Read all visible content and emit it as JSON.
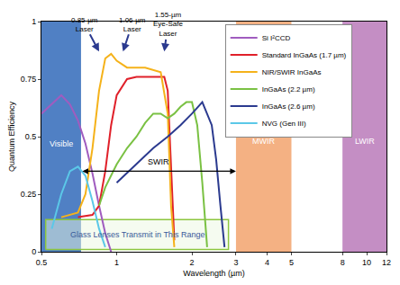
{
  "chart_data": {
    "type": "line",
    "x_label": "Wavelength (µm)",
    "y_label": "Quantum Efficiency",
    "xlim": [
      0.5,
      12
    ],
    "ylim": [
      0,
      1
    ],
    "xticks": [
      0.5,
      1,
      2,
      3,
      4,
      5,
      8,
      10,
      12
    ],
    "yticks": [
      0,
      0.25,
      0.5,
      0.75,
      1
    ],
    "log": "x",
    "grid": false,
    "legend": "upper right",
    "regions": [
      {
        "label": "Visible",
        "x0": 0.5,
        "x1": 0.72,
        "color": "#5080c4"
      },
      {
        "label": "MWIR",
        "x0": 3,
        "x1": 5,
        "color": "#f4b183"
      },
      {
        "label": "LWIR",
        "x0": 8,
        "x1": 12,
        "color": "#c48ec4"
      }
    ],
    "range_arrow": {
      "label": "SWIR",
      "x0": 0.72,
      "x1": 3
    },
    "lasers": [
      {
        "label": "0.85-µm Laser",
        "x": 0.85
      },
      {
        "label": "1.06-µm Laser",
        "x": 1.06
      },
      {
        "label": "1.55-µm Eye-Safe Laser",
        "x": 1.55
      }
    ],
    "box": {
      "label": "Glass Lenses Transmit in This Range",
      "x0": 0.52,
      "x1": 2.8,
      "y0": 0.01,
      "y1": 0.14,
      "color": "#8dc63f"
    },
    "series": [
      {
        "name": "Si I²CCD",
        "color": "#a05cbf",
        "x": [
          0.5,
          0.55,
          0.6,
          0.65,
          0.7,
          0.75,
          0.8,
          0.85,
          0.9,
          0.95
        ],
        "values": [
          0.6,
          0.64,
          0.68,
          0.64,
          0.57,
          0.47,
          0.34,
          0.2,
          0.08,
          0.0
        ]
      },
      {
        "name": "Standard InGaAs (1.7 µm)",
        "color": "#e0202a",
        "x": [
          0.7,
          0.8,
          0.85,
          0.9,
          0.95,
          1.0,
          1.1,
          1.2,
          1.4,
          1.55,
          1.6,
          1.65,
          1.7
        ],
        "values": [
          0.15,
          0.16,
          0.2,
          0.35,
          0.55,
          0.68,
          0.75,
          0.76,
          0.76,
          0.76,
          0.7,
          0.35,
          0.05
        ]
      },
      {
        "name": "NIR/SWIR InGaAs",
        "color": "#f5b21a",
        "x": [
          0.6,
          0.7,
          0.75,
          0.8,
          0.85,
          0.9,
          0.95,
          1.0,
          1.1,
          1.3,
          1.5,
          1.6,
          1.65,
          1.7
        ],
        "values": [
          0.15,
          0.17,
          0.25,
          0.45,
          0.7,
          0.84,
          0.86,
          0.83,
          0.8,
          0.8,
          0.78,
          0.6,
          0.2,
          0.02
        ]
      },
      {
        "name": "InGaAs (2.2 µm)",
        "color": "#7ac143",
        "x": [
          0.85,
          0.9,
          1.0,
          1.1,
          1.2,
          1.3,
          1.4,
          1.5,
          1.6,
          1.7,
          1.8,
          1.9,
          2.0,
          2.1,
          2.2,
          2.3
        ],
        "values": [
          0.2,
          0.28,
          0.38,
          0.45,
          0.5,
          0.56,
          0.6,
          0.6,
          0.58,
          0.6,
          0.63,
          0.65,
          0.65,
          0.55,
          0.3,
          0.02
        ]
      },
      {
        "name": "InGaAs (2.6 µm)",
        "color": "#2b3a8f",
        "x": [
          1.0,
          1.2,
          1.4,
          1.6,
          1.8,
          2.0,
          2.2,
          2.4,
          2.5,
          2.6,
          2.7
        ],
        "values": [
          0.3,
          0.38,
          0.45,
          0.5,
          0.55,
          0.6,
          0.65,
          0.55,
          0.4,
          0.2,
          0.02
        ]
      },
      {
        "name": "NVG (Gen III)",
        "color": "#5bc8e8",
        "x": [
          0.55,
          0.6,
          0.65,
          0.7,
          0.75,
          0.8,
          0.85,
          0.9
        ],
        "values": [
          0.1,
          0.25,
          0.35,
          0.37,
          0.33,
          0.22,
          0.1,
          0.02
        ]
      }
    ]
  }
}
